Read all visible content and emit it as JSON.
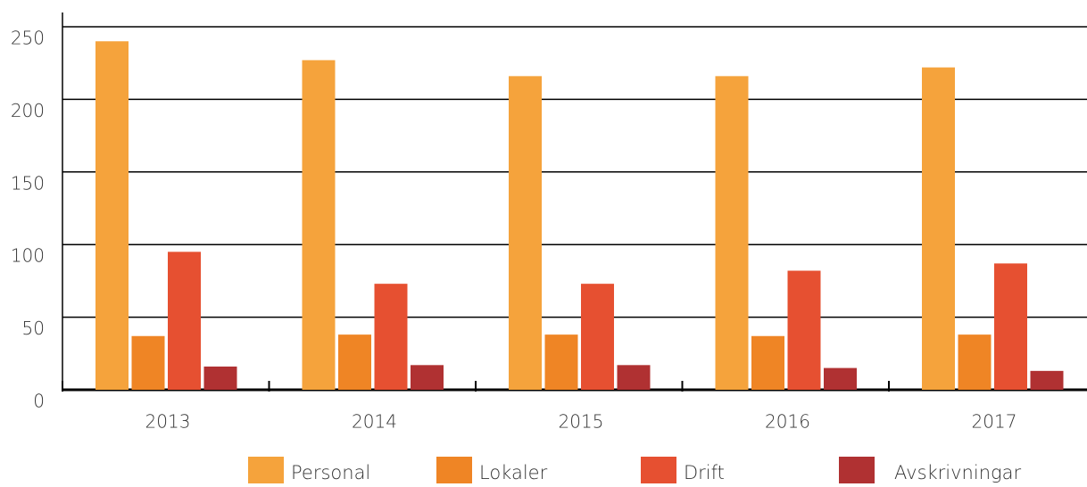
{
  "chart_data": {
    "type": "bar",
    "categories": [
      "2013",
      "2014",
      "2015",
      "2016",
      "2017"
    ],
    "series": [
      {
        "name": "Personal",
        "color": "#f5a33c",
        "values": [
          240,
          227,
          216,
          216,
          222
        ]
      },
      {
        "name": "Lokaler",
        "color": "#ef8525",
        "values": [
          37,
          38,
          38,
          37,
          38
        ]
      },
      {
        "name": "Drift",
        "color": "#e65031",
        "values": [
          95,
          73,
          73,
          82,
          87
        ]
      },
      {
        "name": "Avskrivningar",
        "color": "#b03132",
        "values": [
          16,
          17,
          17,
          15,
          13
        ]
      }
    ],
    "ylim": [
      0,
      250
    ],
    "yticks": [
      0,
      50,
      100,
      150,
      200,
      250
    ],
    "grid": true
  }
}
